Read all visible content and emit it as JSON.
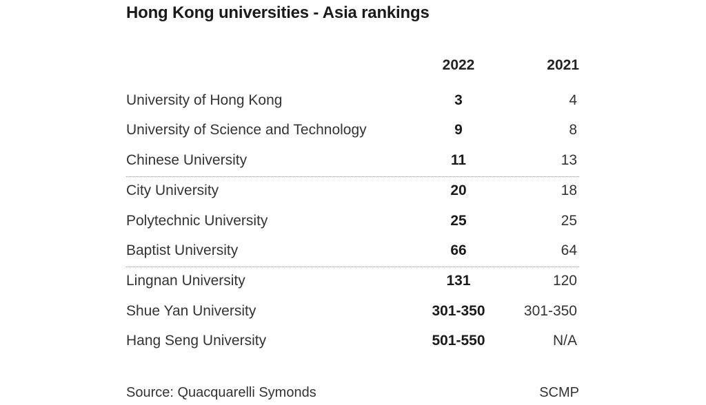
{
  "chart_data": {
    "type": "table",
    "title": "Hong Kong universities - Asia rankings",
    "columns": [
      "2022",
      "2021"
    ],
    "rows": [
      {
        "name": "University of Hong Kong",
        "2022": "3",
        "2021": "4"
      },
      {
        "name": "University of Science and Technology",
        "2022": "9",
        "2021": "8"
      },
      {
        "name": "Chinese University",
        "2022": "11",
        "2021": "13"
      },
      {
        "name": "City University",
        "2022": "20",
        "2021": "18"
      },
      {
        "name": "Polytechnic University",
        "2022": "25",
        "2021": "25"
      },
      {
        "name": "Baptist University",
        "2022": "66",
        "2021": "64"
      },
      {
        "name": "Lingnan University",
        "2022": "131",
        "2021": "120"
      },
      {
        "name": "Shue Yan University",
        "2022": "301-350",
        "2021": "301-350"
      },
      {
        "name": "Hang Seng University",
        "2022": "501-550",
        "2021": "N/A"
      }
    ],
    "group_separators_before_rows": [
      3,
      6
    ],
    "source": "Source: Quacquarelli Symonds",
    "credit": "SCMP"
  }
}
